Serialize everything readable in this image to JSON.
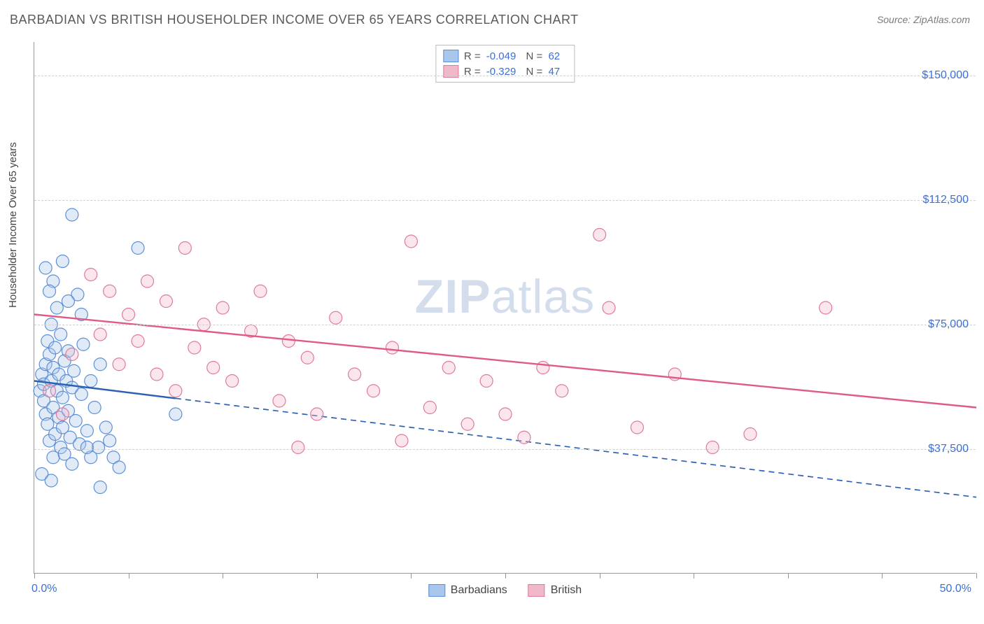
{
  "title": "BARBADIAN VS BRITISH HOUSEHOLDER INCOME OVER 65 YEARS CORRELATION CHART",
  "source": "Source: ZipAtlas.com",
  "ylabel": "Householder Income Over 65 years",
  "watermark_a": "ZIP",
  "watermark_b": "atlas",
  "chart": {
    "type": "scatter",
    "xlim": [
      0,
      50
    ],
    "ylim": [
      0,
      160000
    ],
    "x_min_label": "0.0%",
    "x_max_label": "50.0%",
    "xtick_positions": [
      0,
      5,
      10,
      15,
      20,
      25,
      30,
      35,
      40,
      45,
      50
    ],
    "yticks": [
      {
        "v": 37500,
        "label": "$37,500"
      },
      {
        "v": 75000,
        "label": "$75,000"
      },
      {
        "v": 112500,
        "label": "$112,500"
      },
      {
        "v": 150000,
        "label": "$150,000"
      }
    ],
    "grid_color": "#d0d0d0",
    "background_color": "#ffffff",
    "marker_radius": 9,
    "marker_fill_opacity": 0.35,
    "marker_stroke_width": 1.2,
    "series": [
      {
        "name": "Barbadians",
        "name_key": "legend.series_a",
        "color_fill": "#a9c7ec",
        "color_stroke": "#5b8fd6",
        "R": "-0.049",
        "N": "62",
        "trend": {
          "y_at_x0": 58000,
          "y_at_x50": 23000,
          "line_color": "#2d5fb3",
          "line_width": 2.4,
          "solid_until_x": 7.5
        },
        "points": [
          [
            0.3,
            55000
          ],
          [
            0.4,
            60000
          ],
          [
            0.5,
            52000
          ],
          [
            0.5,
            57000
          ],
          [
            0.6,
            63000
          ],
          [
            0.6,
            48000
          ],
          [
            0.7,
            70000
          ],
          [
            0.7,
            45000
          ],
          [
            0.8,
            66000
          ],
          [
            0.8,
            40000
          ],
          [
            0.9,
            58000
          ],
          [
            0.9,
            75000
          ],
          [
            1.0,
            50000
          ],
          [
            1.0,
            62000
          ],
          [
            1.0,
            35000
          ],
          [
            1.1,
            68000
          ],
          [
            1.1,
            42000
          ],
          [
            1.2,
            80000
          ],
          [
            1.2,
            55000
          ],
          [
            1.3,
            47000
          ],
          [
            1.3,
            60000
          ],
          [
            1.4,
            38000
          ],
          [
            1.4,
            72000
          ],
          [
            1.5,
            53000
          ],
          [
            1.5,
            44000
          ],
          [
            1.6,
            64000
          ],
          [
            1.6,
            36000
          ],
          [
            1.7,
            58000
          ],
          [
            1.8,
            49000
          ],
          [
            1.8,
            67000
          ],
          [
            1.9,
            41000
          ],
          [
            2.0,
            56000
          ],
          [
            2.0,
            33000
          ],
          [
            2.1,
            61000
          ],
          [
            2.2,
            46000
          ],
          [
            2.3,
            84000
          ],
          [
            2.4,
            39000
          ],
          [
            2.5,
            54000
          ],
          [
            2.6,
            69000
          ],
          [
            2.8,
            43000
          ],
          [
            3.0,
            58000
          ],
          [
            3.0,
            35000
          ],
          [
            3.2,
            50000
          ],
          [
            3.4,
            38000
          ],
          [
            3.5,
            63000
          ],
          [
            1.0,
            88000
          ],
          [
            1.5,
            94000
          ],
          [
            2.0,
            108000
          ],
          [
            0.8,
            85000
          ],
          [
            2.5,
            78000
          ],
          [
            0.6,
            92000
          ],
          [
            1.8,
            82000
          ],
          [
            3.8,
            44000
          ],
          [
            4.0,
            40000
          ],
          [
            4.2,
            35000
          ],
          [
            4.5,
            32000
          ],
          [
            0.4,
            30000
          ],
          [
            0.9,
            28000
          ],
          [
            2.8,
            38000
          ],
          [
            5.5,
            98000
          ],
          [
            7.5,
            48000
          ],
          [
            3.5,
            26000
          ]
        ]
      },
      {
        "name": "British",
        "name_key": "legend.series_b",
        "color_fill": "#f0b8c8",
        "color_stroke": "#e07a9a",
        "R": "-0.329",
        "N": "47",
        "trend": {
          "y_at_x0": 78000,
          "y_at_x50": 50000,
          "line_color": "#e05a85",
          "line_width": 2.4,
          "solid_until_x": 50
        },
        "points": [
          [
            2.0,
            66000
          ],
          [
            3.0,
            90000
          ],
          [
            3.5,
            72000
          ],
          [
            4.0,
            85000
          ],
          [
            4.5,
            63000
          ],
          [
            5.0,
            78000
          ],
          [
            5.5,
            70000
          ],
          [
            6.0,
            88000
          ],
          [
            6.5,
            60000
          ],
          [
            7.0,
            82000
          ],
          [
            7.5,
            55000
          ],
          [
            8.0,
            98000
          ],
          [
            8.5,
            68000
          ],
          [
            9.0,
            75000
          ],
          [
            9.5,
            62000
          ],
          [
            10.0,
            80000
          ],
          [
            10.5,
            58000
          ],
          [
            11.5,
            73000
          ],
          [
            12.0,
            85000
          ],
          [
            13.0,
            52000
          ],
          [
            13.5,
            70000
          ],
          [
            14.5,
            65000
          ],
          [
            15.0,
            48000
          ],
          [
            16.0,
            77000
          ],
          [
            17.0,
            60000
          ],
          [
            18.0,
            55000
          ],
          [
            19.0,
            68000
          ],
          [
            20.0,
            100000
          ],
          [
            21.0,
            50000
          ],
          [
            22.0,
            62000
          ],
          [
            23.0,
            45000
          ],
          [
            24.0,
            58000
          ],
          [
            25.0,
            48000
          ],
          [
            26.0,
            41000
          ],
          [
            28.0,
            55000
          ],
          [
            30.0,
            102000
          ],
          [
            30.5,
            80000
          ],
          [
            32.0,
            44000
          ],
          [
            34.0,
            60000
          ],
          [
            36.0,
            38000
          ],
          [
            38.0,
            42000
          ],
          [
            42.0,
            80000
          ],
          [
            14.0,
            38000
          ],
          [
            19.5,
            40000
          ],
          [
            27.0,
            62000
          ],
          [
            0.8,
            55000
          ],
          [
            1.5,
            48000
          ]
        ]
      }
    ]
  },
  "legend": {
    "series_a": "Barbadians",
    "series_b": "British",
    "r_label": "R =",
    "n_label": "N ="
  }
}
